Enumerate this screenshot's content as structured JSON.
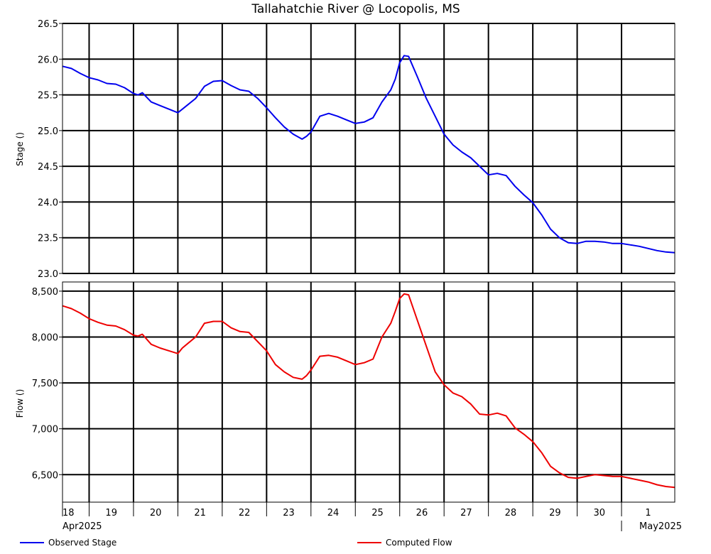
{
  "chart_data": {
    "type": "line",
    "title": "Tallahatchie River @ Locopolis, MS",
    "x": {
      "unit": "days since 2025-04-18 00:00",
      "range": [
        0,
        13.8
      ],
      "day_ticks": [
        {
          "day": 0.6,
          "label": "19"
        },
        {
          "day": 1.6,
          "label": "20"
        },
        {
          "day": 2.6,
          "label": "21"
        },
        {
          "day": 3.6,
          "label": "22"
        },
        {
          "day": 4.6,
          "label": "23"
        },
        {
          "day": 5.6,
          "label": "24"
        },
        {
          "day": 6.6,
          "label": "25"
        },
        {
          "day": 7.6,
          "label": "26"
        },
        {
          "day": 8.6,
          "label": "27"
        },
        {
          "day": 9.6,
          "label": "28"
        },
        {
          "day": 10.6,
          "label": "29"
        },
        {
          "day": 11.6,
          "label": "30"
        },
        {
          "day": 12.6,
          "label": "1"
        }
      ],
      "first_label": "18",
      "month_labels": {
        "start": "Apr2025",
        "end": "May2025"
      },
      "month_divider_day": 12.6
    },
    "panels": [
      {
        "name": "stage",
        "ylabel": "Stage ()",
        "ylim": [
          23.0,
          26.5
        ],
        "yticks": [
          23.0,
          23.5,
          24.0,
          24.5,
          25.0,
          25.5,
          26.0,
          26.5
        ],
        "ytick_labels": [
          "23.0",
          "23.5",
          "24.0",
          "24.5",
          "25.0",
          "25.5",
          "26.0",
          "26.5"
        ],
        "series": [
          {
            "name": "Observed Stage",
            "color": "#0000ee",
            "x": [
              0,
              0.2,
              0.4,
              0.6,
              0.8,
              1.0,
              1.2,
              1.4,
              1.6,
              1.7,
              1.8,
              2.0,
              2.2,
              2.4,
              2.6,
              2.7,
              2.8,
              3.0,
              3.2,
              3.4,
              3.6,
              3.8,
              4.0,
              4.2,
              4.4,
              4.6,
              4.8,
              5.0,
              5.2,
              5.4,
              5.5,
              5.6,
              5.8,
              6.0,
              6.2,
              6.4,
              6.6,
              6.8,
              7.0,
              7.2,
              7.4,
              7.5,
              7.6,
              7.7,
              7.8,
              8.0,
              8.2,
              8.4,
              8.6,
              8.8,
              9.0,
              9.2,
              9.4,
              9.6,
              9.8,
              10.0,
              10.2,
              10.4,
              10.6,
              10.8,
              11.0,
              11.2,
              11.4,
              11.6,
              11.8,
              12.0,
              12.2,
              12.4,
              12.6,
              12.8,
              13.0,
              13.2,
              13.4,
              13.6,
              13.8
            ],
            "y": [
              25.9,
              25.87,
              25.8,
              25.74,
              25.71,
              25.66,
              25.65,
              25.6,
              25.52,
              25.5,
              25.53,
              25.4,
              25.35,
              25.3,
              25.25,
              25.3,
              25.35,
              25.45,
              25.62,
              25.69,
              25.7,
              25.63,
              25.57,
              25.55,
              25.45,
              25.32,
              25.18,
              25.05,
              24.95,
              24.88,
              24.92,
              24.98,
              25.2,
              25.24,
              25.2,
              25.15,
              25.1,
              25.12,
              25.18,
              25.4,
              25.57,
              25.72,
              25.95,
              26.05,
              26.04,
              25.75,
              25.45,
              25.2,
              24.95,
              24.8,
              24.7,
              24.62,
              24.5,
              24.38,
              24.4,
              24.37,
              24.22,
              24.1,
              23.99,
              23.82,
              23.62,
              23.5,
              23.43,
              23.42,
              23.45,
              23.45,
              23.44,
              23.42,
              23.42,
              23.4,
              23.38,
              23.35,
              23.32,
              23.3,
              23.29
            ]
          }
        ]
      },
      {
        "name": "flow",
        "ylabel": "Flow ()",
        "ylim": [
          6200,
          8600
        ],
        "yticks": [
          6500,
          7000,
          7500,
          8000,
          8500
        ],
        "ytick_labels": [
          "6,500",
          "7,000",
          "7,500",
          "8,000",
          "8,500"
        ],
        "series": [
          {
            "name": "Computed Flow",
            "color": "#ee0000",
            "x": [
              0,
              0.2,
              0.4,
              0.6,
              0.8,
              1.0,
              1.2,
              1.4,
              1.6,
              1.7,
              1.8,
              2.0,
              2.2,
              2.4,
              2.6,
              2.7,
              2.8,
              3.0,
              3.2,
              3.4,
              3.6,
              3.8,
              4.0,
              4.2,
              4.4,
              4.6,
              4.8,
              5.0,
              5.2,
              5.4,
              5.5,
              5.6,
              5.8,
              6.0,
              6.2,
              6.4,
              6.6,
              6.8,
              7.0,
              7.2,
              7.4,
              7.5,
              7.6,
              7.7,
              7.8,
              8.0,
              8.2,
              8.4,
              8.6,
              8.8,
              9.0,
              9.2,
              9.4,
              9.6,
              9.8,
              10.0,
              10.2,
              10.4,
              10.6,
              10.8,
              11.0,
              11.2,
              11.4,
              11.6,
              11.8,
              12.0,
              12.2,
              12.4,
              12.6,
              12.8,
              13.0,
              13.2,
              13.4,
              13.6,
              13.8
            ],
            "y": [
              8340,
              8310,
              8260,
              8200,
              8160,
              8130,
              8120,
              8080,
              8020,
              8010,
              8030,
              7920,
              7880,
              7850,
              7820,
              7880,
              7920,
              8000,
              8150,
              8170,
              8170,
              8100,
              8060,
              8050,
              7950,
              7850,
              7700,
              7620,
              7560,
              7540,
              7580,
              7640,
              7790,
              7800,
              7780,
              7740,
              7700,
              7720,
              7760,
              8000,
              8150,
              8280,
              8420,
              8470,
              8460,
              8180,
              7900,
              7620,
              7480,
              7390,
              7350,
              7270,
              7160,
              7150,
              7170,
              7140,
              7010,
              6940,
              6860,
              6740,
              6590,
              6520,
              6470,
              6460,
              6480,
              6500,
              6490,
              6480,
              6480,
              6460,
              6440,
              6420,
              6390,
              6370,
              6360
            ]
          }
        ]
      }
    ],
    "legend": {
      "placement": "bottom",
      "items": [
        {
          "label": "Observed Stage",
          "color": "#0000ee"
        },
        {
          "label": "Computed Flow",
          "color": "#ee0000"
        }
      ]
    },
    "grid": true
  }
}
